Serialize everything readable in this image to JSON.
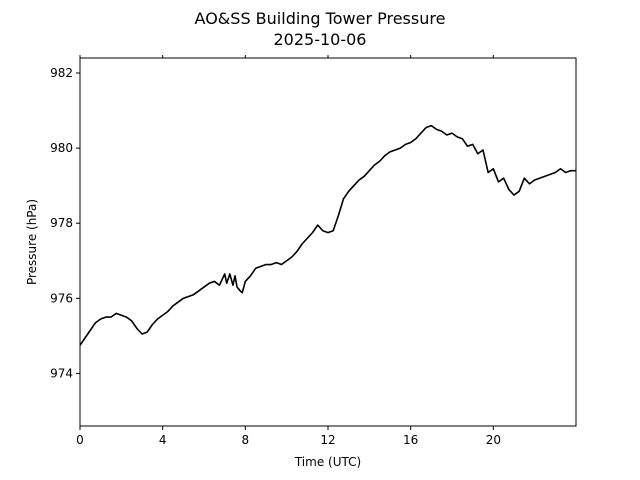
{
  "chart_data": {
    "type": "line",
    "title": "AO&SS Building Tower Pressure",
    "subtitle": "2025-10-06",
    "xlabel": "Time (UTC)",
    "ylabel": "Pressure (hPa)",
    "xlim": [
      0,
      24
    ],
    "ylim": [
      972.6,
      982.4
    ],
    "xticks": [
      0,
      4,
      8,
      12,
      16,
      20
    ],
    "yticks": [
      974,
      976,
      978,
      980,
      982
    ],
    "grid": false,
    "line_color": "#000000",
    "series": [
      {
        "x": [
          0,
          0.25,
          0.5,
          0.75,
          1.0,
          1.25,
          1.5,
          1.75,
          2.0,
          2.25,
          2.5,
          2.75,
          3.0,
          3.25,
          3.5,
          3.75,
          4.0,
          4.25,
          4.5,
          4.75,
          5.0,
          5.25,
          5.5,
          5.75,
          6.0,
          6.25,
          6.5,
          6.75,
          7.0,
          7.1,
          7.25,
          7.4,
          7.5,
          7.6,
          7.75,
          7.85,
          8.0,
          8.25,
          8.5,
          8.75,
          9.0,
          9.25,
          9.5,
          9.75,
          10.0,
          10.25,
          10.5,
          10.75,
          11.0,
          11.25,
          11.5,
          11.75,
          12.0,
          12.25,
          12.5,
          12.75,
          13.0,
          13.25,
          13.5,
          13.75,
          14.0,
          14.25,
          14.5,
          14.75,
          15.0,
          15.25,
          15.5,
          15.75,
          16.0,
          16.25,
          16.5,
          16.75,
          17.0,
          17.25,
          17.5,
          17.75,
          18.0,
          18.25,
          18.5,
          18.75,
          19.0,
          19.25,
          19.5,
          19.75,
          20.0,
          20.25,
          20.5,
          20.75,
          21.0,
          21.25,
          21.5,
          21.75,
          22.0,
          22.25,
          22.5,
          22.75,
          23.0,
          23.25,
          23.5,
          23.75,
          24.0
        ],
        "y": [
          974.75,
          974.95,
          975.15,
          975.35,
          975.45,
          975.5,
          975.5,
          975.6,
          975.55,
          975.5,
          975.4,
          975.2,
          975.05,
          975.1,
          975.3,
          975.45,
          975.55,
          975.65,
          975.8,
          975.9,
          976.0,
          976.05,
          976.1,
          976.2,
          976.3,
          976.4,
          976.45,
          976.35,
          976.65,
          976.4,
          976.65,
          976.35,
          976.6,
          976.3,
          976.2,
          976.15,
          976.45,
          976.6,
          976.8,
          976.85,
          976.9,
          976.9,
          976.95,
          976.9,
          977.0,
          977.1,
          977.25,
          977.45,
          977.6,
          977.75,
          977.95,
          977.8,
          977.75,
          977.8,
          978.2,
          978.65,
          978.85,
          979.0,
          979.15,
          979.25,
          979.4,
          979.55,
          979.65,
          979.8,
          979.9,
          979.95,
          980.0,
          980.1,
          980.15,
          980.25,
          980.4,
          980.55,
          980.6,
          980.5,
          980.45,
          980.35,
          980.4,
          980.3,
          980.25,
          980.05,
          980.1,
          979.85,
          979.95,
          979.35,
          979.45,
          979.1,
          979.2,
          978.9,
          978.75,
          978.85,
          979.2,
          979.05,
          979.15,
          979.2,
          979.25,
          979.3,
          979.35,
          979.45,
          979.35,
          979.4,
          979.4
        ]
      }
    ]
  }
}
